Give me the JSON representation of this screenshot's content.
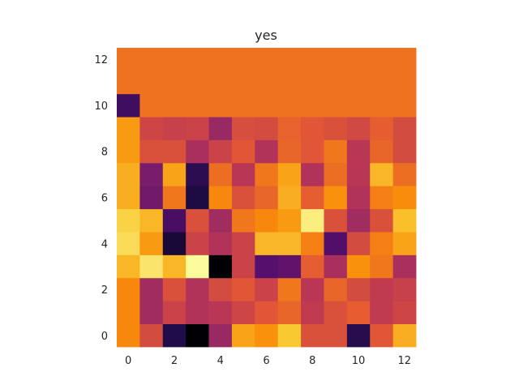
{
  "chart_data": {
    "type": "heatmap",
    "title": "yes",
    "xlabel": "",
    "ylabel": "",
    "colormap": "inferno",
    "origin": "lower",
    "x_ticks": [
      0,
      2,
      4,
      6,
      8,
      10,
      12
    ],
    "y_ticks": [
      0,
      2,
      4,
      6,
      8,
      10,
      12
    ],
    "xlim": [
      -0.5,
      12.5
    ],
    "ylim": [
      -0.5,
      12.5
    ],
    "grid": false,
    "vmin": 0,
    "vmax": 1,
    "rows": [
      [
        0.74,
        0.58,
        0.13,
        0.0,
        0.42,
        0.8,
        0.76,
        0.88,
        0.6,
        0.6,
        0.15,
        0.62,
        0.82
      ],
      [
        0.74,
        0.44,
        0.55,
        0.48,
        0.5,
        0.56,
        0.62,
        0.66,
        0.52,
        0.6,
        0.64,
        0.52,
        0.56
      ],
      [
        0.74,
        0.44,
        0.6,
        0.48,
        0.58,
        0.62,
        0.55,
        0.7,
        0.5,
        0.66,
        0.58,
        0.52,
        0.54
      ],
      [
        0.84,
        0.94,
        0.84,
        0.99,
        0.0,
        0.55,
        0.25,
        0.28,
        0.64,
        0.46,
        0.76,
        0.7,
        0.46
      ],
      [
        0.92,
        0.78,
        0.1,
        0.55,
        0.48,
        0.55,
        0.84,
        0.84,
        0.72,
        0.24,
        0.58,
        0.72,
        0.8
      ],
      [
        0.9,
        0.84,
        0.22,
        0.6,
        0.44,
        0.7,
        0.74,
        0.78,
        0.96,
        0.6,
        0.44,
        0.6,
        0.86
      ],
      [
        0.82,
        0.32,
        0.7,
        0.12,
        0.74,
        0.6,
        0.66,
        0.82,
        0.64,
        0.76,
        0.48,
        0.72,
        0.75
      ],
      [
        0.82,
        0.34,
        0.8,
        0.16,
        0.68,
        0.5,
        0.7,
        0.8,
        0.48,
        0.68,
        0.5,
        0.84,
        0.68
      ],
      [
        0.78,
        0.6,
        0.6,
        0.46,
        0.55,
        0.62,
        0.48,
        0.66,
        0.62,
        0.7,
        0.5,
        0.66,
        0.58
      ],
      [
        0.78,
        0.56,
        0.54,
        0.55,
        0.42,
        0.59,
        0.58,
        0.65,
        0.62,
        0.6,
        0.57,
        0.64,
        0.58
      ],
      [
        0.2,
        0.69,
        0.69,
        0.69,
        0.69,
        0.69,
        0.69,
        0.69,
        0.69,
        0.69,
        0.69,
        0.69,
        0.69
      ],
      [
        0.69,
        0.69,
        0.69,
        0.69,
        0.69,
        0.69,
        0.69,
        0.69,
        0.69,
        0.69,
        0.69,
        0.69,
        0.69
      ],
      [
        0.69,
        0.69,
        0.69,
        0.69,
        0.69,
        0.69,
        0.69,
        0.69,
        0.69,
        0.69,
        0.69,
        0.69,
        0.69
      ]
    ]
  }
}
